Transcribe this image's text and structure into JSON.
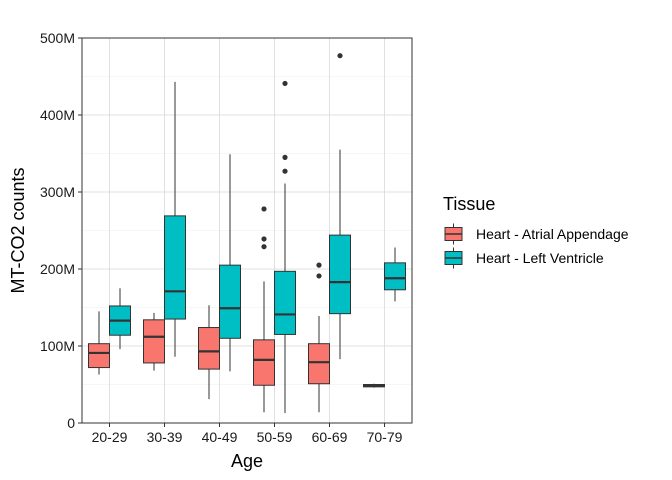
{
  "chart_data": {
    "type": "boxplot",
    "xlabel": "Age",
    "ylabel": "MT-CO2 counts",
    "categories": [
      "20-29",
      "30-39",
      "40-49",
      "50-59",
      "60-69",
      "70-79"
    ],
    "ylim": [
      0,
      500000000
    ],
    "yticks": [
      0,
      100000000,
      200000000,
      300000000,
      400000000,
      500000000
    ],
    "ytick_labels": [
      "0",
      "100M",
      "200M",
      "300M",
      "400M",
      "500M"
    ],
    "grid": true,
    "legend": {
      "title": "Tissue",
      "position": "right"
    },
    "series": [
      {
        "name": "Heart - Atrial Appendage",
        "color": "#F8766D",
        "boxes": [
          {
            "category": "20-29",
            "min": 63000000,
            "q1": 72000000,
            "median": 91000000,
            "q3": 103000000,
            "max": 145000000,
            "outliers": []
          },
          {
            "category": "30-39",
            "min": 68000000,
            "q1": 78000000,
            "median": 112000000,
            "q3": 134000000,
            "max": 143000000,
            "outliers": []
          },
          {
            "category": "40-49",
            "min": 31000000,
            "q1": 70000000,
            "median": 93000000,
            "q3": 124000000,
            "max": 153000000,
            "outliers": []
          },
          {
            "category": "50-59",
            "min": 14000000,
            "q1": 49000000,
            "median": 82000000,
            "q3": 108000000,
            "max": 184000000,
            "outliers": [
              229000000,
              239000000,
              278000000
            ]
          },
          {
            "category": "60-69",
            "min": 14000000,
            "q1": 51000000,
            "median": 79000000,
            "q3": 103000000,
            "max": 139000000,
            "outliers": [
              191000000,
              205000000
            ]
          },
          {
            "category": "70-79",
            "min": 46000000,
            "q1": 47000000,
            "median": 48000000,
            "q3": 50000000,
            "max": 51000000,
            "outliers": []
          }
        ]
      },
      {
        "name": "Heart - Left Ventricle",
        "color": "#00BFC4",
        "boxes": [
          {
            "category": "20-29",
            "min": 96000000,
            "q1": 114000000,
            "median": 133000000,
            "q3": 152000000,
            "max": 175000000,
            "outliers": []
          },
          {
            "category": "30-39",
            "min": 86000000,
            "q1": 135000000,
            "median": 171000000,
            "q3": 269000000,
            "max": 443000000,
            "outliers": []
          },
          {
            "category": "40-49",
            "min": 67000000,
            "q1": 110000000,
            "median": 149000000,
            "q3": 205000000,
            "max": 349000000,
            "outliers": []
          },
          {
            "category": "50-59",
            "min": 13000000,
            "q1": 115000000,
            "median": 141000000,
            "q3": 197000000,
            "max": 311000000,
            "outliers": [
              327000000,
              345000000,
              441000000
            ]
          },
          {
            "category": "60-69",
            "min": 83000000,
            "q1": 142000000,
            "median": 183000000,
            "q3": 244000000,
            "max": 355000000,
            "outliers": [
              477000000
            ]
          },
          {
            "category": "70-79",
            "min": 158000000,
            "q1": 173000000,
            "median": 188000000,
            "q3": 208000000,
            "max": 228000000,
            "outliers": []
          }
        ]
      }
    ]
  }
}
